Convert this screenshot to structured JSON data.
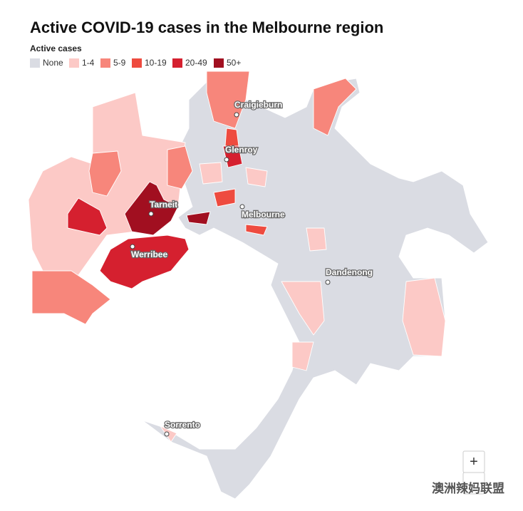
{
  "title": "Active COVID-19 cases in the Melbourne region",
  "legend": {
    "title": "Active cases",
    "items": [
      {
        "label": "None",
        "color": "#dadce3"
      },
      {
        "label": "1-4",
        "color": "#fcc9c6"
      },
      {
        "label": "5-9",
        "color": "#f7867b"
      },
      {
        "label": "10-19",
        "color": "#ee4b3f"
      },
      {
        "label": "20-49",
        "color": "#d5202f"
      },
      {
        "label": "50+",
        "color": "#a10f20"
      }
    ]
  },
  "places": [
    "Craigieburn",
    "Glenroy",
    "Tarneit",
    "Melbourne",
    "Werribee",
    "Dandenong",
    "Sorrento"
  ],
  "zoom": "+",
  "watermark": "澳洲辣妈联盟"
}
